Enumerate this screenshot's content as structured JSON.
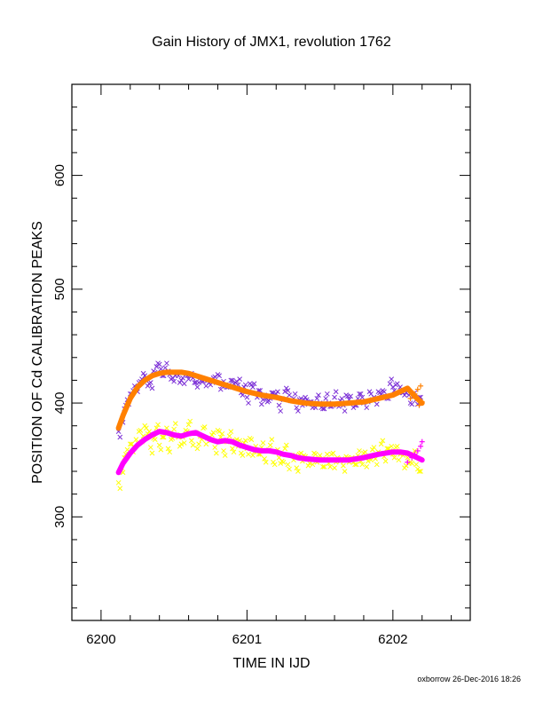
{
  "footer": "oxborrow 26-Dec-2016 18:26",
  "chart_data": {
    "type": "scatter",
    "title": "Gain History of JMX1, revolution 1762",
    "xlabel": "TIME IN IJD",
    "ylabel": "POSITION OF Cd CALIBRATION PEAKS",
    "xlim": [
      6199.8,
      6202.53
    ],
    "ylim": [
      209,
      680
    ],
    "xticks": [
      6200,
      6201,
      6202
    ],
    "xtick_labels": [
      "6200",
      "6201",
      "6202"
    ],
    "yticks": [
      300,
      400,
      500,
      600
    ],
    "ytick_labels": [
      "300",
      "400",
      "500",
      "600"
    ],
    "grid": false,
    "colors": {
      "upper_scatter": "#7b2fd6",
      "upper_fit": "#ff8000",
      "lower_scatter": "#ffff00",
      "lower_fit": "#ff00ff"
    },
    "series": [
      {
        "kind": "scatter",
        "marker": "x",
        "x": [
          6200.12,
          6200.14,
          6200.16,
          6200.18,
          6200.2,
          6200.22,
          6200.24,
          6200.26,
          6200.28,
          6200.3,
          6200.32,
          6200.34,
          6200.36,
          6200.38,
          6200.4,
          6200.42,
          6200.44,
          6200.46,
          6200.48,
          6200.5,
          6200.52,
          6200.54,
          6200.56,
          6200.58,
          6200.6,
          6200.62,
          6200.64,
          6200.66,
          6200.68,
          6200.7,
          6200.72,
          6200.74,
          6200.76,
          6200.78,
          6200.8,
          6200.82,
          6200.84,
          6200.86,
          6200.88,
          6200.9,
          6200.92,
          6200.94,
          6200.96,
          6200.98,
          6201.0,
          6201.02,
          6201.04,
          6201.06,
          6201.08,
          6201.1,
          6201.12,
          6201.14,
          6201.16,
          6201.18,
          6201.2,
          6201.22,
          6201.24,
          6201.26,
          6201.28,
          6201.3,
          6201.32,
          6201.34,
          6201.36,
          6201.38,
          6201.4,
          6201.42,
          6201.44,
          6201.46,
          6201.48,
          6201.5,
          6201.52,
          6201.54,
          6201.56,
          6201.58,
          6201.6,
          6201.62,
          6201.64,
          6201.66,
          6201.68,
          6201.7,
          6201.72,
          6201.74,
          6201.76,
          6201.78,
          6201.8,
          6201.82,
          6201.84,
          6201.86,
          6201.88,
          6201.9,
          6201.92,
          6201.94,
          6201.96,
          6201.98,
          6202.0,
          6202.02,
          6202.04,
          6202.06,
          6202.08,
          6202.1,
          6202.12,
          6202.14,
          6202.16,
          6202.18
        ],
        "y": [
          375,
          384,
          395,
          403,
          408,
          411,
          413,
          418,
          421,
          424,
          415,
          418,
          428,
          432,
          434,
          424,
          431,
          428,
          421,
          419,
          426,
          418,
          422,
          425,
          421,
          426,
          418,
          414,
          422,
          419,
          415,
          418,
          420,
          423,
          425,
          412,
          419,
          414,
          416,
          420,
          418,
          416,
          409,
          414,
          405,
          417,
          414,
          409,
          411,
          399,
          407,
          401,
          404,
          409,
          408,
          398,
          404,
          410,
          411,
          402,
          404,
          396,
          403,
          398,
          405,
          399,
          401,
          397,
          404,
          400,
          395,
          404,
          400,
          397,
          405,
          399,
          402,
          398,
          407,
          403,
          400,
          398,
          404,
          408,
          400,
          396,
          410,
          403,
          404,
          410,
          408,
          410,
          404,
          417,
          414,
          416,
          409,
          411,
          407,
          412,
          400,
          406,
          403,
          405
        ]
      },
      {
        "kind": "line",
        "x": [
          6200.12,
          6200.15,
          6200.2,
          6200.25,
          6200.3,
          6200.35,
          6200.4,
          6200.45,
          6200.5,
          6200.55,
          6200.6,
          6200.7,
          6200.8,
          6200.9,
          6201.0,
          6201.1,
          6201.2,
          6201.3,
          6201.4,
          6201.5,
          6201.6,
          6201.7,
          6201.8,
          6201.9,
          6202.0,
          6202.05,
          6202.1,
          6202.15,
          6202.2
        ],
        "y": [
          378,
          389,
          404,
          414,
          420,
          424,
          426,
          427,
          427,
          427,
          426,
          422,
          418,
          414,
          410,
          407,
          405,
          402,
          400,
          399,
          399,
          400,
          401,
          404,
          407,
          410,
          413,
          406,
          400
        ]
      },
      {
        "kind": "scatter",
        "marker": "x",
        "x": [
          6200.12,
          6200.14,
          6200.16,
          6200.18,
          6200.2,
          6200.22,
          6200.24,
          6200.26,
          6200.28,
          6200.3,
          6200.32,
          6200.34,
          6200.36,
          6200.38,
          6200.4,
          6200.42,
          6200.44,
          6200.46,
          6200.48,
          6200.5,
          6200.52,
          6200.54,
          6200.56,
          6200.58,
          6200.6,
          6200.62,
          6200.64,
          6200.66,
          6200.68,
          6200.7,
          6200.72,
          6200.74,
          6200.76,
          6200.78,
          6200.8,
          6200.82,
          6200.84,
          6200.86,
          6200.88,
          6200.9,
          6200.92,
          6200.94,
          6200.96,
          6200.98,
          6201.0,
          6201.02,
          6201.04,
          6201.06,
          6201.08,
          6201.1,
          6201.12,
          6201.14,
          6201.16,
          6201.18,
          6201.2,
          6201.22,
          6201.24,
          6201.26,
          6201.28,
          6201.3,
          6201.32,
          6201.34,
          6201.36,
          6201.38,
          6201.4,
          6201.42,
          6201.44,
          6201.46,
          6201.48,
          6201.5,
          6201.52,
          6201.54,
          6201.56,
          6201.58,
          6201.6,
          6201.62,
          6201.64,
          6201.66,
          6201.68,
          6201.7,
          6201.72,
          6201.74,
          6201.76,
          6201.78,
          6201.8,
          6201.82,
          6201.84,
          6201.86,
          6201.88,
          6201.9,
          6201.92,
          6201.94,
          6201.96,
          6201.98,
          6202.0,
          6202.02,
          6202.04,
          6202.06,
          6202.08,
          6202.1,
          6202.12,
          6202.14,
          6202.16,
          6202.18
        ],
        "y": [
          330,
          340,
          352,
          359,
          364,
          357,
          368,
          375,
          366,
          380,
          373,
          361,
          369,
          378,
          363,
          370,
          374,
          360,
          368,
          377,
          372,
          362,
          370,
          376,
          381,
          367,
          374,
          360,
          371,
          378,
          364,
          369,
          372,
          361,
          376,
          370,
          358,
          366,
          371,
          360,
          367,
          362,
          356,
          365,
          360,
          369,
          354,
          362,
          355,
          361,
          351,
          358,
          363,
          348,
          357,
          352,
          349,
          360,
          346,
          354,
          350,
          343,
          355,
          349,
          353,
          345,
          351,
          356,
          348,
          354,
          344,
          351,
          347,
          355,
          343,
          352,
          349,
          345,
          353,
          348,
          352,
          346,
          354,
          349,
          356,
          344,
          352,
          359,
          351,
          357,
          364,
          353,
          360,
          358,
          355,
          361,
          350,
          356,
          343,
          352,
          348,
          355,
          346,
          340
        ]
      },
      {
        "kind": "line",
        "x": [
          6200.12,
          6200.15,
          6200.2,
          6200.25,
          6200.3,
          6200.35,
          6200.4,
          6200.45,
          6200.5,
          6200.55,
          6200.6,
          6200.65,
          6200.7,
          6200.75,
          6200.8,
          6200.85,
          6200.9,
          6200.95,
          6201.0,
          6201.05,
          6201.1,
          6201.15,
          6201.2,
          6201.25,
          6201.3,
          6201.35,
          6201.4,
          6201.5,
          6201.6,
          6201.7,
          6201.8,
          6201.9,
          6202.0,
          6202.05,
          6202.1,
          6202.15,
          6202.2
        ],
        "y": [
          339,
          347,
          356,
          363,
          368,
          372,
          375,
          374,
          372,
          371,
          373,
          374,
          371,
          368,
          366,
          367,
          366,
          363,
          361,
          359,
          358,
          358,
          357,
          355,
          354,
          352,
          351,
          350,
          350,
          350,
          352,
          355,
          357,
          357,
          356,
          353,
          350
        ]
      }
    ],
    "extra_markers": {
      "marker": "+",
      "orange": {
        "x": [
          6202.12,
          6202.15,
          6202.17,
          6202.19,
          6202.2,
          6202.18
        ],
        "y": [
          404,
          408,
          412,
          415,
          401,
          398
        ]
      },
      "magenta": {
        "x": [
          6202.1,
          6202.13,
          6202.15,
          6202.17,
          6202.19,
          6202.2
        ],
        "y": [
          348,
          352,
          355,
          358,
          362,
          366
        ]
      }
    }
  }
}
